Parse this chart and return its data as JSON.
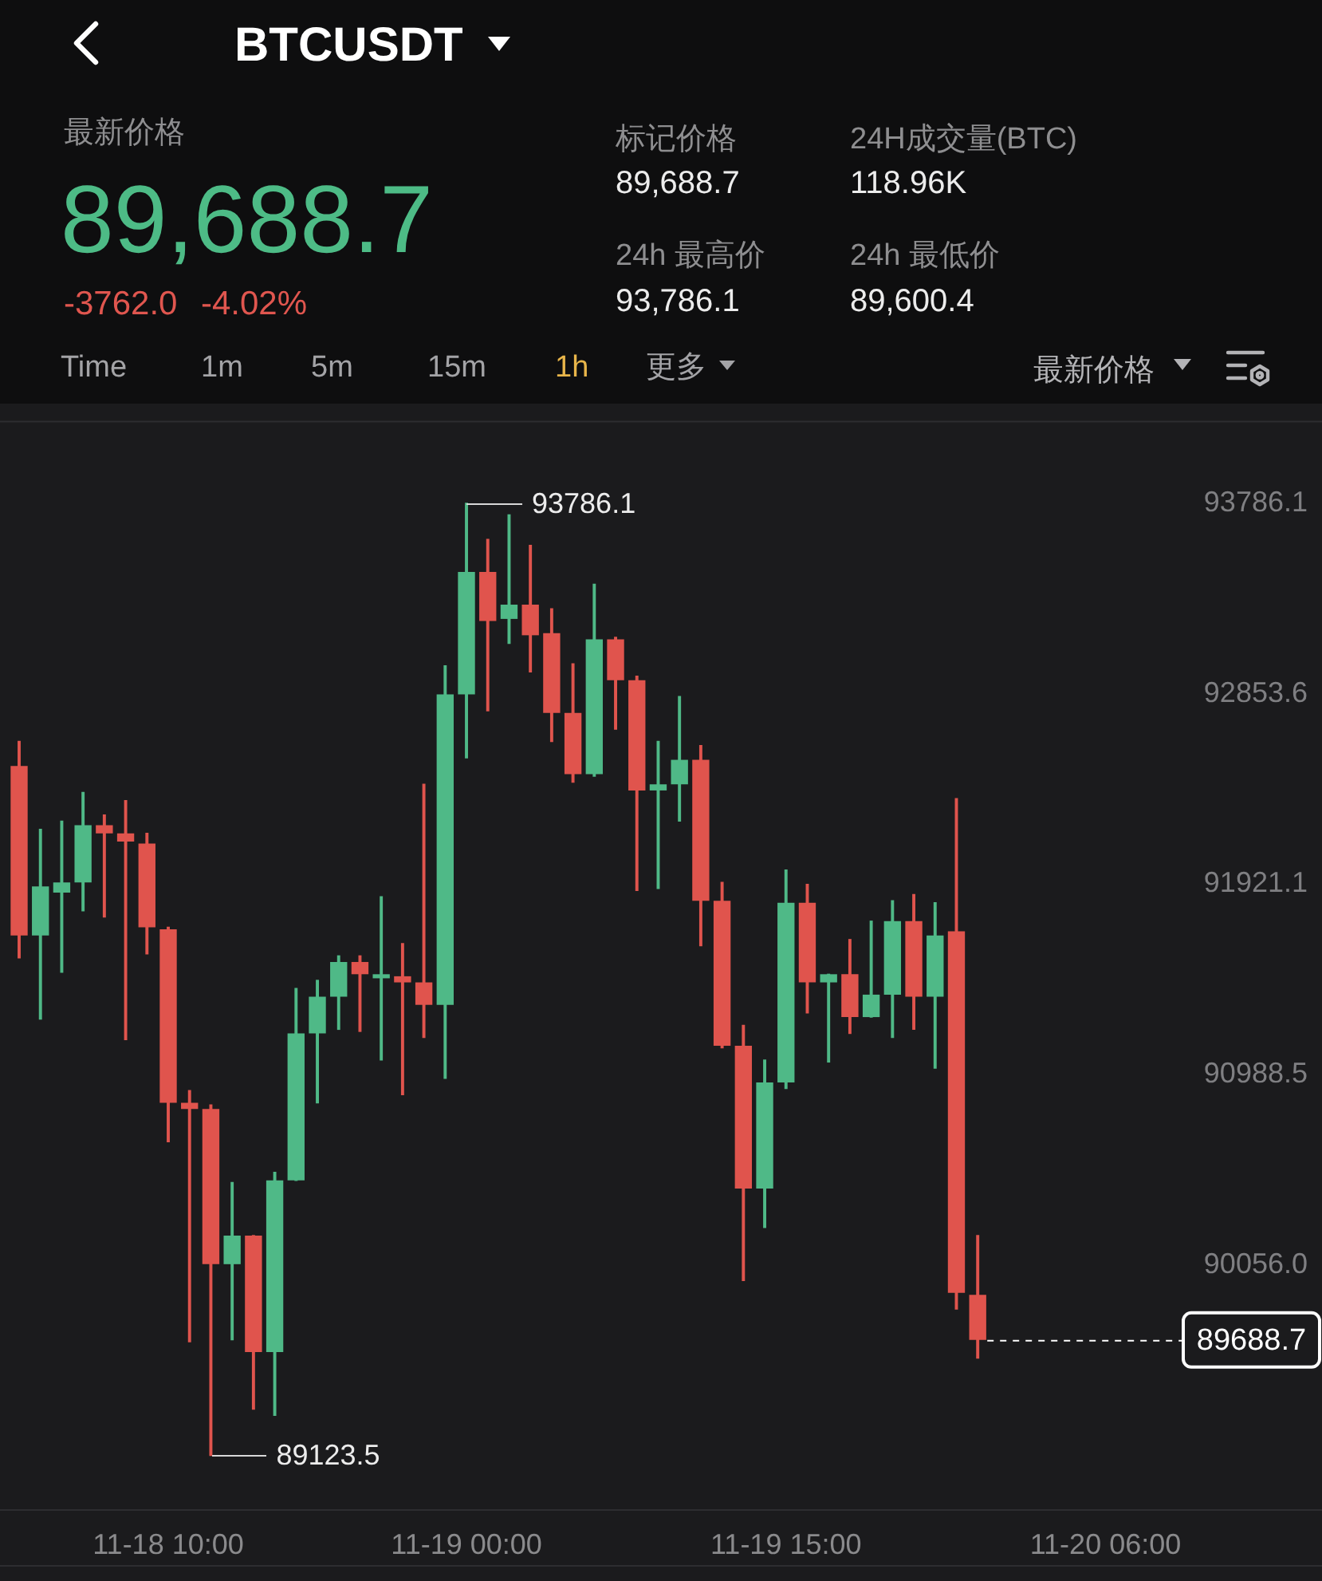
{
  "chart_data": [
    {
      "type": "other",
      "title": "BTCUSDT",
      "annotations": [
        "最新价格",
        "89,688.7",
        "-3762.0",
        "-4.02%",
        "标记价格",
        "89,688.7",
        "24H成交量(BTC)",
        "118.96K",
        "24h 最高价",
        "93,786.1",
        "24h 最低价",
        "89,600.4",
        "Time",
        "1m",
        "5m",
        "15m",
        "1h",
        "更多",
        "最新价格"
      ]
    },
    {
      "type": "candlestick",
      "categories": [
        null,
        null,
        null,
        null,
        null,
        null,
        null,
        "11-18 10:00",
        null,
        null,
        null,
        null,
        null,
        null,
        null,
        null,
        null,
        null,
        null,
        null,
        null,
        "11-19 00:00",
        null,
        null,
        null,
        null,
        null,
        null,
        null,
        null,
        null,
        null,
        null,
        null,
        null,
        null,
        "11-19 15:00",
        null,
        null,
        null,
        null,
        null,
        null,
        null,
        null,
        null,
        null,
        null,
        null,
        null,
        null,
        "11-20 06:00",
        null,
        null,
        null
      ],
      "ohlc": [
        [
          92500,
          92620,
          91560,
          91670
        ],
        [
          91670,
          92190,
          91260,
          91910
        ],
        [
          91880,
          92230,
          91490,
          91930
        ],
        [
          91930,
          92370,
          91790,
          92210
        ],
        [
          92210,
          92260,
          91760,
          92170
        ],
        [
          92170,
          92330,
          91160,
          92130
        ],
        [
          92120,
          92170,
          91580,
          91710
        ],
        [
          91700,
          91710,
          90660,
          90850
        ],
        [
          90850,
          90910,
          89680,
          90820
        ],
        [
          90820,
          90840,
          89123.5,
          90060
        ],
        [
          90060,
          90460,
          89690,
          90200
        ],
        [
          90200,
          90200,
          89350,
          89630
        ],
        [
          89630,
          90510,
          89320,
          90470
        ],
        [
          90470,
          91410,
          90470,
          91190
        ],
        [
          91190,
          91450,
          90850,
          91370
        ],
        [
          91370,
          91570,
          91210,
          91540
        ],
        [
          91540,
          91570,
          91200,
          91480
        ],
        [
          91460,
          91860,
          91060,
          91480
        ],
        [
          91470,
          91630,
          90890,
          91440
        ],
        [
          91440,
          92410,
          91170,
          91330
        ],
        [
          91330,
          92990,
          90970,
          92850
        ],
        [
          92850,
          93786.1,
          92540,
          93450
        ],
        [
          93450,
          93610,
          92770,
          93210
        ],
        [
          93220,
          93730,
          93100,
          93290
        ],
        [
          93290,
          93580,
          92960,
          93140
        ],
        [
          93150,
          93270,
          92620,
          92760
        ],
        [
          92760,
          93000,
          92420,
          92460
        ],
        [
          92460,
          93390,
          92450,
          93120
        ],
        [
          93120,
          93130,
          92680,
          92920
        ],
        [
          92920,
          92940,
          91890,
          92380
        ],
        [
          92380,
          92620,
          91900,
          92410
        ],
        [
          92410,
          92840,
          92230,
          92530
        ],
        [
          92530,
          92600,
          91620,
          91840
        ],
        [
          91840,
          91930,
          91120,
          91130
        ],
        [
          91130,
          91230,
          89980,
          90430
        ],
        [
          90430,
          91060,
          90240,
          90950
        ],
        [
          90950,
          91990,
          90920,
          91830
        ],
        [
          91830,
          91920,
          91290,
          91440
        ],
        [
          91440,
          91480,
          91050,
          91480
        ],
        [
          91480,
          91650,
          91190,
          91270
        ],
        [
          91270,
          91740,
          91270,
          91380
        ],
        [
          91380,
          91840,
          91170,
          91740
        ],
        [
          91740,
          91870,
          91210,
          91370
        ],
        [
          91370,
          91830,
          91020,
          91670
        ],
        [
          91690,
          92340,
          89840,
          89920
        ],
        [
          89910,
          90200,
          89600.4,
          89688.7
        ],
        null,
        null,
        null,
        null,
        null,
        null,
        null,
        null,
        null
      ],
      "colors": [
        "#e0544d",
        "#4fb987",
        "#4fb987",
        "#4fb987",
        "#e0544d",
        "#e0544d",
        "#e0544d",
        "#e0544d",
        "#e0544d",
        "#e0544d",
        "#4fb987",
        "#e0544d",
        "#4fb987",
        "#4fb987",
        "#4fb987",
        "#4fb987",
        "#e0544d",
        "#4fb987",
        "#e0544d",
        "#e0544d",
        "#4fb987",
        "#4fb987",
        "#e0544d",
        "#4fb987",
        "#e0544d",
        "#e0544d",
        "#e0544d",
        "#4fb987",
        "#e0544d",
        "#e0544d",
        "#4fb987",
        "#4fb987",
        "#e0544d",
        "#e0544d",
        "#e0544d",
        "#4fb987",
        "#4fb987",
        "#e0544d",
        "#4fb987",
        "#e0544d",
        "#4fb987",
        "#4fb987",
        "#e0544d",
        "#4fb987",
        "#e0544d",
        "#e0544d",
        null,
        null,
        null,
        null,
        null,
        null,
        null,
        null,
        null
      ],
      "ylim": [
        88860,
        94190
      ],
      "yticks": [
        93786.1,
        92853.6,
        91921.1,
        90988.5,
        {
          "value": 90056,
          "label": "90056.0"
        }
      ],
      "annotations": [
        {
          "text": "93786.1",
          "x": "11-19 00:00",
          "y": 93786.1
        },
        "89123.5"
      ],
      "ref_lines": [
        {
          "axis": "y",
          "value": 89688.7,
          "label": "89688.7",
          "color": "#ffffff",
          "line_style": "dashed"
        }
      ]
    }
  ]
}
